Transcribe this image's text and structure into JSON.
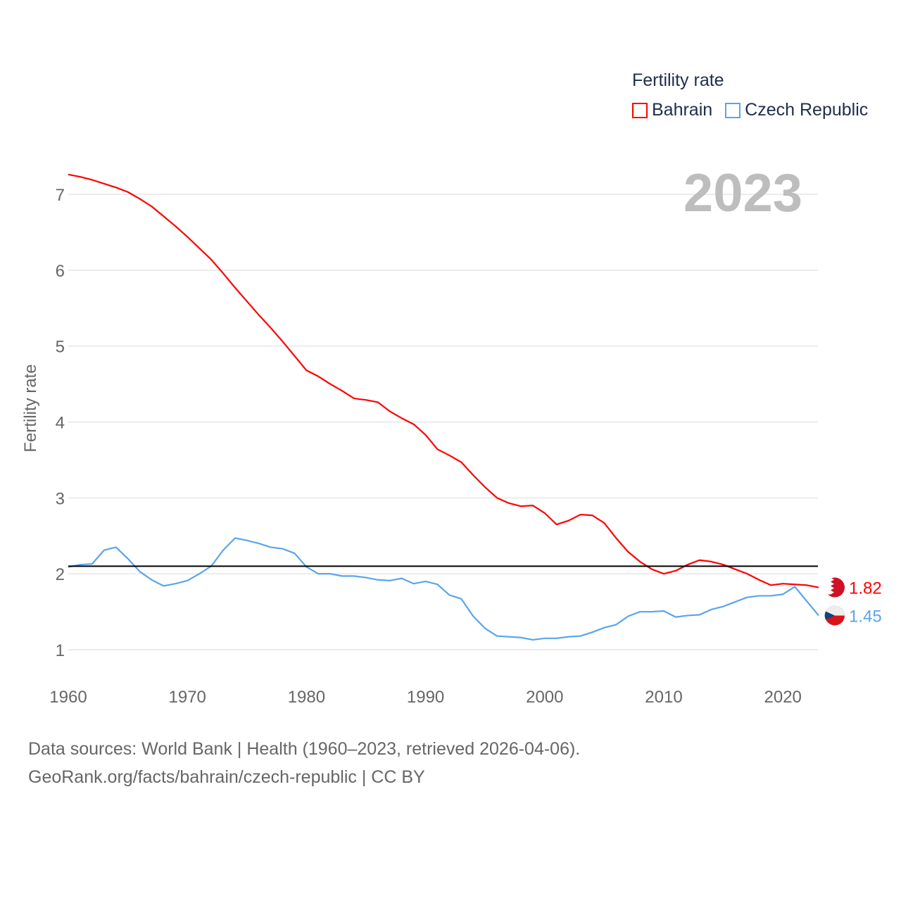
{
  "chart_data": {
    "type": "line",
    "title": "Fertility rate",
    "current_year_label": "2023",
    "xlabel": "",
    "ylabel": "Fertility rate",
    "xlim": [
      1960,
      2023
    ],
    "ylim": [
      0.6,
      7.6
    ],
    "x_ticks": [
      1960,
      1970,
      1980,
      1990,
      2000,
      2010,
      2020
    ],
    "y_ticks": [
      1,
      2,
      3,
      4,
      5,
      6,
      7
    ],
    "grid": true,
    "reference_line": 2.1,
    "legend_placement": "top-right",
    "x": [
      1960,
      1961,
      1962,
      1963,
      1964,
      1965,
      1966,
      1967,
      1968,
      1969,
      1970,
      1971,
      1972,
      1973,
      1974,
      1975,
      1976,
      1977,
      1978,
      1979,
      1980,
      1981,
      1982,
      1983,
      1984,
      1985,
      1986,
      1987,
      1988,
      1989,
      1990,
      1991,
      1992,
      1993,
      1994,
      1995,
      1996,
      1997,
      1998,
      1999,
      2000,
      2001,
      2002,
      2003,
      2004,
      2005,
      2006,
      2007,
      2008,
      2009,
      2010,
      2011,
      2012,
      2013,
      2014,
      2015,
      2016,
      2017,
      2018,
      2019,
      2020,
      2021,
      2022,
      2023
    ],
    "series": [
      {
        "name": "Bahrain",
        "color": "#ff0000",
        "end_label": "1.82",
        "values": [
          7.26,
          7.23,
          7.19,
          7.14,
          7.09,
          7.03,
          6.94,
          6.84,
          6.71,
          6.58,
          6.44,
          6.29,
          6.14,
          5.96,
          5.77,
          5.59,
          5.41,
          5.24,
          5.06,
          4.87,
          4.68,
          4.6,
          4.5,
          4.41,
          4.31,
          4.29,
          4.26,
          4.14,
          4.05,
          3.97,
          3.83,
          3.64,
          3.56,
          3.47,
          3.3,
          3.14,
          3.0,
          2.93,
          2.89,
          2.9,
          2.8,
          2.65,
          2.7,
          2.78,
          2.77,
          2.67,
          2.47,
          2.29,
          2.16,
          2.06,
          2.0,
          2.04,
          2.12,
          2.18,
          2.16,
          2.12,
          2.06,
          2.0,
          1.92,
          1.85,
          1.87,
          1.86,
          1.85,
          1.82
        ]
      },
      {
        "name": "Czech Republic",
        "color": "#5aa5ec",
        "end_label": "1.45",
        "values": [
          2.09,
          2.12,
          2.13,
          2.31,
          2.35,
          2.2,
          2.03,
          1.92,
          1.84,
          1.87,
          1.91,
          2.0,
          2.1,
          2.31,
          2.47,
          2.44,
          2.4,
          2.35,
          2.33,
          2.27,
          2.09,
          2.0,
          2.0,
          1.97,
          1.97,
          1.95,
          1.92,
          1.91,
          1.94,
          1.87,
          1.9,
          1.86,
          1.72,
          1.67,
          1.44,
          1.28,
          1.18,
          1.17,
          1.16,
          1.13,
          1.15,
          1.15,
          1.17,
          1.18,
          1.23,
          1.29,
          1.33,
          1.44,
          1.5,
          1.5,
          1.51,
          1.43,
          1.45,
          1.46,
          1.53,
          1.57,
          1.63,
          1.69,
          1.71,
          1.71,
          1.73,
          1.83,
          1.64,
          1.45
        ]
      }
    ]
  },
  "footer": {
    "line1": "Data sources: World Bank | Health (1960–2023, retrieved 2026-04-06).",
    "line2": "GeoRank.org/facts/bahrain/czech-republic | CC BY"
  }
}
